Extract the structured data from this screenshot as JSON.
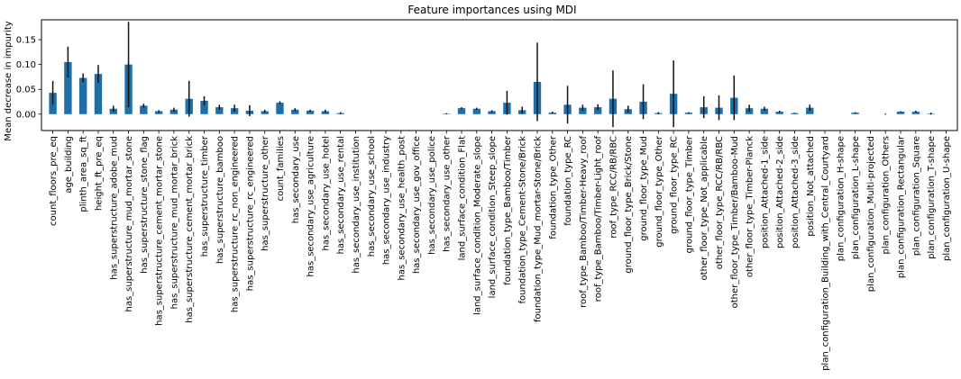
{
  "chart_data": {
    "type": "bar",
    "title": "Feature importances using MDI",
    "xlabel": "",
    "ylabel": "Mean decrease in impurity",
    "ylim": [
      -0.033,
      0.19
    ],
    "yticks": [
      "0.00",
      "0.05",
      "0.10",
      "0.15"
    ],
    "ytick_values": [
      0,
      0.05,
      0.1,
      0.15
    ],
    "bar_color": "#1f6fa7",
    "error_color": "#111111",
    "grid": false,
    "categories": [
      "count_floors_pre_eq",
      "age_building",
      "plinth_area_sq_ft",
      "height_ft_pre_eq",
      "has_superstructure_adobe_mud",
      "has_superstructure_mud_mortar_stone",
      "has_superstructure_stone_flag",
      "has_superstructure_cement_mortar_stone",
      "has_superstructure_mud_mortar_brick",
      "has_superstructure_cement_mortar_brick",
      "has_superstructure_timber",
      "has_superstructure_bamboo",
      "has_superstructure_rc_non_engineered",
      "has_superstructure_rc_engineered",
      "has_superstructure_other",
      "count_families",
      "has_secondary_use",
      "has_secondary_use_agriculture",
      "has_secondary_use_hotel",
      "has_secondary_use_rental",
      "has_secondary_use_institution",
      "has_secondary_use_school",
      "has_secondary_use_industry",
      "has_secondary_use_health_post",
      "has_secondary_use_gov_office",
      "has_secondary_use_police",
      "has_secondary_use_other",
      "land_surface_condition_Flat",
      "land_surface_condition_Moderate_slope",
      "land_surface_condition_Steep_slope",
      "foundation_type_Bamboo/Timber",
      "foundation_type_Cement-Stone/Brick",
      "foundation_type_Mud_mortar-Stone/Brick",
      "foundation_type_Other",
      "foundation_type_RC",
      "roof_type_Bamboo/Timber-Heavy_roof",
      "roof_type_Bamboo/Timber-Light_roof",
      "roof_type_RCC/RB/RBC",
      "ground_floor_type_Brick/Stone",
      "ground_floor_type_Mud",
      "ground_floor_type_Other",
      "ground_floor_type_RC",
      "ground_floor_type_Timber",
      "other_floor_type_Not_applicable",
      "other_floor_type_RCC/RB/RBC",
      "other_floor_type_Timber/Bamboo-Mud",
      "other_floor_type_Timber-Planck",
      "position_Attached-1_side",
      "position_Attached-2_side",
      "position_Attached-3_side",
      "position_Not_attached",
      "plan_configuration_Building_with_Central_Courtyard",
      "plan_configuration_H-shape",
      "plan_configuration_L-shape",
      "plan_configuration_Multi-projected",
      "plan_configuration_Others",
      "plan_configuration_Rectangular",
      "plan_configuration_Square",
      "plan_configuration_T-shape",
      "plan_configuration_U-shape"
    ],
    "values": [
      0.043,
      0.105,
      0.073,
      0.081,
      0.011,
      0.1,
      0.017,
      0.006,
      0.009,
      0.031,
      0.027,
      0.014,
      0.012,
      0.007,
      0.006,
      0.023,
      0.009,
      0.007,
      0.006,
      0.002,
      0.0,
      0.0,
      0.0,
      0.0,
      0.0,
      0.0,
      0.001,
      0.012,
      0.011,
      0.006,
      0.023,
      0.008,
      0.065,
      0.003,
      0.019,
      0.013,
      0.014,
      0.031,
      0.01,
      0.025,
      0.002,
      0.041,
      0.003,
      0.014,
      0.013,
      0.033,
      0.012,
      0.011,
      0.005,
      0.002,
      0.013,
      0.0,
      0.0,
      0.003,
      0.0,
      0.0,
      0.005,
      0.005,
      0.001,
      0.0
    ],
    "errors": [
      0.024,
      0.031,
      0.009,
      0.018,
      0.006,
      0.086,
      0.004,
      0.002,
      0.004,
      0.036,
      0.009,
      0.005,
      0.007,
      0.011,
      0.003,
      0.003,
      0.003,
      0.002,
      0.003,
      0.002,
      0.0,
      0.0,
      0.0,
      0.0,
      0.0,
      0.0,
      0.001,
      0.002,
      0.002,
      0.002,
      0.024,
      0.007,
      0.079,
      0.002,
      0.038,
      0.006,
      0.006,
      0.057,
      0.007,
      0.035,
      0.002,
      0.067,
      0.001,
      0.022,
      0.025,
      0.045,
      0.007,
      0.004,
      0.002,
      0.001,
      0.006,
      0.0,
      0.0,
      0.001,
      0.0,
      0.001,
      0.001,
      0.002,
      0.002,
      0.0
    ]
  }
}
